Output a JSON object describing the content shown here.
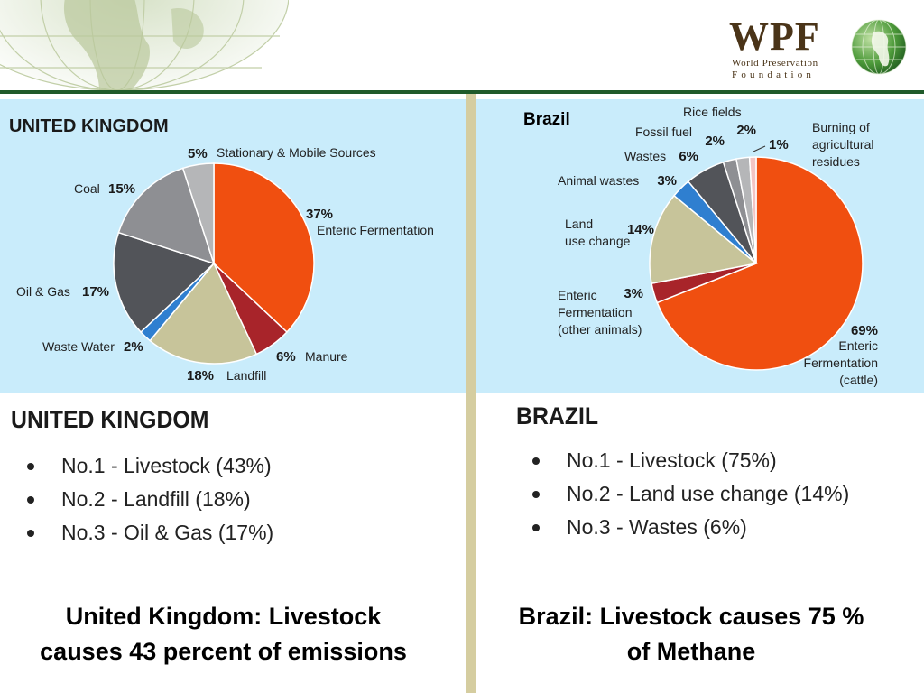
{
  "logo": {
    "mark": "WPF",
    "line1": "World Preservation",
    "line2": "Foundation",
    "icon": "globe-icon"
  },
  "sections": {
    "uk": {
      "title": "UNITED KINGDOM",
      "bullets": [
        "No.1 - Livestock (43%)",
        "No.2 - Landfill (18%)",
        "No.3 - Oil & Gas (17%)"
      ],
      "caption_line1": "United Kingdom:  Livestock",
      "caption_line2": "causes 43 percent of emissions"
    },
    "brazil": {
      "title": "BRAZIL",
      "bullets": [
        "No.1 - Livestock (75%)",
        "No.2 - Land use change (14%)",
        "No.3 - Wastes (6%)"
      ],
      "caption_line1": "Brazil:  Livestock causes 75 %",
      "caption_line2": "of Methane"
    }
  },
  "chart_data": [
    {
      "type": "pie",
      "title": "UNITED KINGDOM",
      "slices": [
        {
          "label": [
            "Enteric Fermentation"
          ],
          "value": 37,
          "value_label": "37%",
          "color": "#f04f10"
        },
        {
          "label": [
            "Manure"
          ],
          "value": 6,
          "value_label": "6%",
          "color": "#a8242a"
        },
        {
          "label": [
            "Landfill"
          ],
          "value": 18,
          "value_label": "18%",
          "color": "#c7c49a"
        },
        {
          "label": [
            "Waste Water"
          ],
          "value": 2,
          "value_label": "2%",
          "color": "#2f7fd0"
        },
        {
          "label": [
            "Oil  & Gas"
          ],
          "value": 17,
          "value_label": "17%",
          "color": "#525459"
        },
        {
          "label": [
            "Coal"
          ],
          "value": 15,
          "value_label": "15%",
          "color": "#8e8f93"
        },
        {
          "label": [
            "Stationary & Mobile Sources"
          ],
          "value": 5,
          "value_label": "5%",
          "color": "#b5b6b8"
        }
      ]
    },
    {
      "type": "pie",
      "title": "Brazil",
      "slices": [
        {
          "label": [
            "Enteric",
            "Fermentation",
            "(cattle)"
          ],
          "value": 69,
          "value_label": "69%",
          "color": "#f04f10"
        },
        {
          "label": [
            "Enteric",
            "Fermentation",
            "(other animals)"
          ],
          "value": 3,
          "value_label": "3%",
          "color": "#a8242a"
        },
        {
          "label": [
            "Land",
            "use change"
          ],
          "value": 14,
          "value_label": "14%",
          "color": "#c7c49a"
        },
        {
          "label": [
            "Animal wastes"
          ],
          "value": 3,
          "value_label": "3%",
          "color": "#2f7fd0"
        },
        {
          "label": [
            "Wastes"
          ],
          "value": 6,
          "value_label": "6%",
          "color": "#525459"
        },
        {
          "label": [
            "Fossil fuel"
          ],
          "value": 2,
          "value_label": "2%",
          "color": "#8e8f93"
        },
        {
          "label": [
            "Rice fields"
          ],
          "value": 2,
          "value_label": "2%",
          "color": "#b5b6b8"
        },
        {
          "label": [
            "Burning of",
            "agricultural",
            "residues"
          ],
          "value": 1,
          "value_label": "1%",
          "color": "#f3c4c4"
        }
      ]
    }
  ]
}
